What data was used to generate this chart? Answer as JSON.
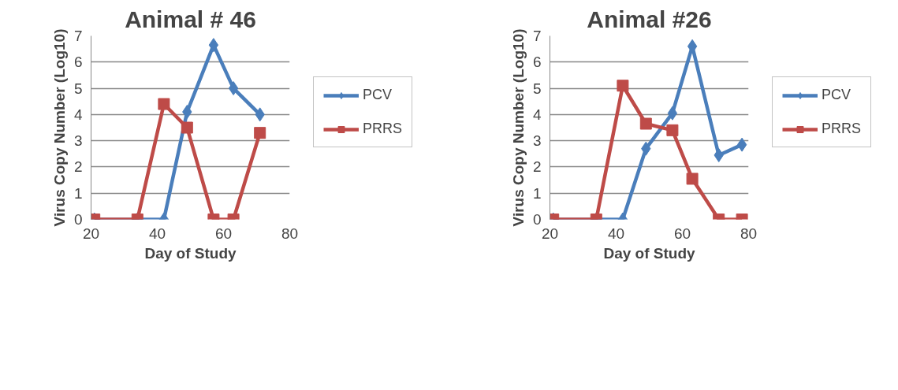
{
  "chart_data": [
    {
      "type": "line",
      "title": "Animal # 46",
      "xlabel": "Day of Study",
      "ylabel": "Virus Copy Number (Log10)",
      "xlim": [
        20,
        80
      ],
      "xticks": [
        20,
        40,
        60,
        80
      ],
      "ylim": [
        0,
        7
      ],
      "yticks": [
        0,
        1,
        2,
        3,
        4,
        5,
        6,
        7
      ],
      "grid": "y",
      "legend": "right",
      "line_style": "solid",
      "series": [
        {
          "name": "PCV",
          "color": "#4a7ebb",
          "marker": "diamond",
          "x": [
            21,
            34,
            42,
            49,
            57,
            63,
            71
          ],
          "values": [
            0,
            0,
            0,
            4.1,
            6.65,
            5.0,
            4.0
          ]
        },
        {
          "name": "PRRS",
          "color": "#be4b48",
          "marker": "square",
          "x": [
            21,
            34,
            42,
            49,
            57,
            63,
            71
          ],
          "values": [
            0,
            0,
            4.4,
            3.5,
            0,
            0,
            3.3
          ]
        }
      ]
    },
    {
      "type": "line",
      "title": "Animal #26",
      "xlabel": "Day of Study",
      "ylabel": "Virus Copy Number (Log10)",
      "xlim": [
        20,
        80
      ],
      "xticks": [
        20,
        40,
        60,
        80
      ],
      "ylim": [
        0,
        7
      ],
      "yticks": [
        0,
        1,
        2,
        3,
        4,
        5,
        6,
        7
      ],
      "grid": "y",
      "legend": "right",
      "line_style": "solid",
      "series": [
        {
          "name": "PCV",
          "color": "#4a7ebb",
          "marker": "diamond",
          "x": [
            21,
            34,
            42,
            49,
            57,
            63,
            71,
            78
          ],
          "values": [
            0,
            0,
            0,
            2.7,
            4.05,
            6.6,
            2.45,
            2.85
          ]
        },
        {
          "name": "PRRS",
          "color": "#be4b48",
          "marker": "square",
          "x": [
            21,
            34,
            42,
            49,
            57,
            63,
            71,
            78
          ],
          "values": [
            0,
            0,
            5.1,
            3.65,
            3.4,
            1.55,
            0,
            0
          ]
        }
      ]
    }
  ]
}
